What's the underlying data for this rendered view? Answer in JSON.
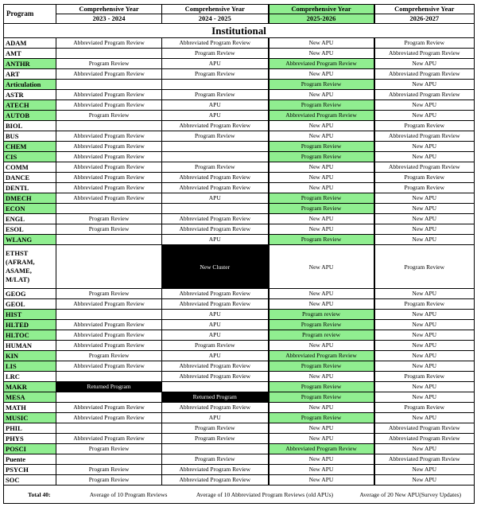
{
  "header": {
    "program_label": "Program",
    "columns": [
      {
        "title": "Comprehensive Year",
        "year": "2023 - 2024",
        "highlight": false
      },
      {
        "title": "Comprehensive Year",
        "year": "2024 - 2025",
        "highlight": false
      },
      {
        "title": "Comprehensive Year",
        "year": "2025-2026",
        "highlight": true
      },
      {
        "title": "Comprehensive Year",
        "year": "2026-2027",
        "highlight": false
      }
    ]
  },
  "section_label": "Institutional",
  "colors": {
    "highlight_green": "#90EE90",
    "inverse_black": "#000000"
  },
  "rows": [
    {
      "program": "ADAM",
      "hl": false,
      "cells": [
        {
          "t": "Abbreviated Program Review"
        },
        {
          "t": "Abbreviated Program Review"
        },
        {
          "t": "New APU"
        },
        {
          "t": "Program Review"
        }
      ]
    },
    {
      "program": "AMT",
      "hl": false,
      "cells": [
        {
          "t": ""
        },
        {
          "t": "Program Review"
        },
        {
          "t": "New APU"
        },
        {
          "t": "Abbreviated Program Review"
        }
      ]
    },
    {
      "program": "ANTHR",
      "hl": true,
      "cells": [
        {
          "t": "Program Review"
        },
        {
          "t": "APU"
        },
        {
          "t": "Abbreviated Program Review",
          "s": "green"
        },
        {
          "t": "New APU"
        }
      ]
    },
    {
      "program": "ART",
      "hl": false,
      "cells": [
        {
          "t": "Abbreviated Program Review"
        },
        {
          "t": "Program Review"
        },
        {
          "t": "New APU"
        },
        {
          "t": "Abbreviated Program Review"
        }
      ]
    },
    {
      "program": "Articulation",
      "hl": true,
      "cells": [
        {
          "t": ""
        },
        {
          "t": ""
        },
        {
          "t": "Program Review",
          "s": "green"
        },
        {
          "t": "New APU"
        }
      ]
    },
    {
      "program": "ASTR",
      "hl": false,
      "cells": [
        {
          "t": "Abbreviated Program Review"
        },
        {
          "t": "Program Review"
        },
        {
          "t": "New APU"
        },
        {
          "t": "Abbreviated Program Review"
        }
      ]
    },
    {
      "program": "ATECH",
      "hl": true,
      "cells": [
        {
          "t": "Abbreviated Program Review"
        },
        {
          "t": "APU"
        },
        {
          "t": "Program Review",
          "s": "green"
        },
        {
          "t": "New APU"
        }
      ]
    },
    {
      "program": "AUTOB",
      "hl": true,
      "cells": [
        {
          "t": "Program Review"
        },
        {
          "t": "APU"
        },
        {
          "t": "Abbreviated Program Review",
          "s": "green"
        },
        {
          "t": "New APU"
        }
      ]
    },
    {
      "program": "BIOL",
      "hl": false,
      "cells": [
        {
          "t": ""
        },
        {
          "t": "Abbreviated Program Review"
        },
        {
          "t": "New APU"
        },
        {
          "t": "Program Review"
        }
      ]
    },
    {
      "program": "BUS",
      "hl": false,
      "cells": [
        {
          "t": "Abbreviated Program Review"
        },
        {
          "t": "Program Review"
        },
        {
          "t": "New APU"
        },
        {
          "t": "Abbreviated Program Review"
        }
      ]
    },
    {
      "program": "CHEM",
      "hl": true,
      "cells": [
        {
          "t": "Abbreviated Program Review"
        },
        {
          "t": ""
        },
        {
          "t": "Program Review",
          "s": "green"
        },
        {
          "t": "New APU"
        }
      ]
    },
    {
      "program": "CIS",
      "hl": true,
      "cells": [
        {
          "t": "Abbreviated Program Review"
        },
        {
          "t": ""
        },
        {
          "t": "Program Review",
          "s": "green"
        },
        {
          "t": "New APU"
        }
      ]
    },
    {
      "program": "COMM",
      "hl": false,
      "cells": [
        {
          "t": "Abbreviated Program Review"
        },
        {
          "t": "Program Review"
        },
        {
          "t": "New APU"
        },
        {
          "t": "Abbreviated Program Review"
        }
      ]
    },
    {
      "program": "DANCE",
      "hl": false,
      "cells": [
        {
          "t": "Abbreviated Program Review"
        },
        {
          "t": "Abbreviated Program Review"
        },
        {
          "t": "New APU"
        },
        {
          "t": "Program Review"
        }
      ]
    },
    {
      "program": "DENTL",
      "hl": false,
      "cells": [
        {
          "t": "Abbreviated Program Review"
        },
        {
          "t": "Abbreviated Program Review"
        },
        {
          "t": "New APU"
        },
        {
          "t": "Program Review"
        }
      ]
    },
    {
      "program": "DMECH",
      "hl": true,
      "cells": [
        {
          "t": "Abbreviated Program Review"
        },
        {
          "t": "APU"
        },
        {
          "t": "Program Review",
          "s": "green"
        },
        {
          "t": "New APU"
        }
      ]
    },
    {
      "program": "ECON",
      "hl": true,
      "cells": [
        {
          "t": ""
        },
        {
          "t": ""
        },
        {
          "t": "Program Review",
          "s": "green"
        },
        {
          "t": "New APU"
        }
      ]
    },
    {
      "program": "ENGL",
      "hl": false,
      "cells": [
        {
          "t": "Program Review"
        },
        {
          "t": "Abbreviated Program Review"
        },
        {
          "t": "New APU"
        },
        {
          "t": "New APU"
        }
      ]
    },
    {
      "program": "ESOL",
      "hl": false,
      "cells": [
        {
          "t": "Program Review"
        },
        {
          "t": "Abbreviated Program Review"
        },
        {
          "t": "New APU"
        },
        {
          "t": "New APU"
        }
      ]
    },
    {
      "program": "WLANG",
      "hl": true,
      "cells": [
        {
          "t": ""
        },
        {
          "t": "APU"
        },
        {
          "t": "Program Review",
          "s": "green"
        },
        {
          "t": "New APU"
        }
      ]
    },
    {
      "program": "ETHST (AFRAM, ASAME, M/LAT)",
      "hl": false,
      "tall": true,
      "cells": [
        {
          "t": ""
        },
        {
          "t": "New Cluster",
          "s": "black"
        },
        {
          "t": "New APU"
        },
        {
          "t": "Program Review"
        }
      ]
    },
    {
      "program": "GEOG",
      "hl": false,
      "cells": [
        {
          "t": "Program Review"
        },
        {
          "t": "Abbreviated Program Review"
        },
        {
          "t": "New APU"
        },
        {
          "t": "New APU"
        }
      ]
    },
    {
      "program": "GEOL",
      "hl": false,
      "cells": [
        {
          "t": "Abbreviated Program Review"
        },
        {
          "t": "Abbreviated Program Review"
        },
        {
          "t": "New APU"
        },
        {
          "t": "Program Review"
        }
      ]
    },
    {
      "program": "HIST",
      "hl": true,
      "cells": [
        {
          "t": ""
        },
        {
          "t": "APU"
        },
        {
          "t": "Program review",
          "s": "green"
        },
        {
          "t": "New APU"
        }
      ]
    },
    {
      "program": "HLTED",
      "hl": true,
      "cells": [
        {
          "t": "Abbreviated Program Review"
        },
        {
          "t": "APU"
        },
        {
          "t": "Program Review",
          "s": "green"
        },
        {
          "t": "New APU"
        }
      ]
    },
    {
      "program": "HLTOC",
      "hl": true,
      "cells": [
        {
          "t": "Abbreviated Program Review"
        },
        {
          "t": "APU"
        },
        {
          "t": "Program review",
          "s": "green"
        },
        {
          "t": "New APU"
        }
      ]
    },
    {
      "program": "HUMAN",
      "hl": false,
      "cells": [
        {
          "t": "Abbreviated Program Review"
        },
        {
          "t": "Program Review"
        },
        {
          "t": "New APU"
        },
        {
          "t": "New APU"
        }
      ]
    },
    {
      "program": "KIN",
      "hl": true,
      "cells": [
        {
          "t": "Program Review"
        },
        {
          "t": "APU"
        },
        {
          "t": "Abbreviated Program Review",
          "s": "green"
        },
        {
          "t": "New APU"
        }
      ]
    },
    {
      "program": "LIS",
      "hl": true,
      "cells": [
        {
          "t": "Abbreviated Program Review"
        },
        {
          "t": "Abbreviated Program Review"
        },
        {
          "t": "Program Review",
          "s": "green"
        },
        {
          "t": "New APU"
        }
      ]
    },
    {
      "program": "LRC",
      "hl": false,
      "cells": [
        {
          "t": ""
        },
        {
          "t": "Abbreviated Program Review"
        },
        {
          "t": "New APU"
        },
        {
          "t": "Program Review"
        }
      ]
    },
    {
      "program": "MAKR",
      "hl": true,
      "cells": [
        {
          "t": "Returned Program",
          "s": "black"
        },
        {
          "t": ""
        },
        {
          "t": "Program Review",
          "s": "green"
        },
        {
          "t": "New APU"
        }
      ]
    },
    {
      "program": "MESA",
      "hl": true,
      "cells": [
        {
          "t": ""
        },
        {
          "t": "Returned Program",
          "s": "black"
        },
        {
          "t": "Program Review",
          "s": "green"
        },
        {
          "t": "New APU"
        }
      ]
    },
    {
      "program": "MATH",
      "hl": false,
      "cells": [
        {
          "t": "Abbreviated Program Review"
        },
        {
          "t": "Abbreviated Program Review"
        },
        {
          "t": "New APU"
        },
        {
          "t": "Program Review"
        }
      ]
    },
    {
      "program": "MUSIC",
      "hl": true,
      "cells": [
        {
          "t": "Abbreviated Program Review"
        },
        {
          "t": "APU"
        },
        {
          "t": "Program Review",
          "s": "green"
        },
        {
          "t": "New APU"
        }
      ]
    },
    {
      "program": "PHIL",
      "hl": false,
      "cells": [
        {
          "t": ""
        },
        {
          "t": "Program Review"
        },
        {
          "t": "New APU"
        },
        {
          "t": "Abbreviated Program Review"
        }
      ]
    },
    {
      "program": "PHYS",
      "hl": false,
      "cells": [
        {
          "t": "Abbreviated Program Review"
        },
        {
          "t": "Program Review"
        },
        {
          "t": "New APU"
        },
        {
          "t": "Abbreviated Program Review"
        }
      ]
    },
    {
      "program": "POSCI",
      "hl": true,
      "cells": [
        {
          "t": "Program Review"
        },
        {
          "t": ""
        },
        {
          "t": "Abbreviated Program Review",
          "s": "green"
        },
        {
          "t": "New APU"
        }
      ]
    },
    {
      "program": "Puente",
      "hl": false,
      "cells": [
        {
          "t": ""
        },
        {
          "t": "Program Review"
        },
        {
          "t": "New APU"
        },
        {
          "t": "Abbreviated Program Review"
        }
      ]
    },
    {
      "program": "PSYCH",
      "hl": false,
      "cells": [
        {
          "t": "Program Review"
        },
        {
          "t": "Abbreviated Program Review"
        },
        {
          "t": "New APU"
        },
        {
          "t": "New APU"
        }
      ]
    },
    {
      "program": "SOC",
      "hl": false,
      "cells": [
        {
          "t": "Program Review"
        },
        {
          "t": "Abbreviated Program Review"
        },
        {
          "t": "New APU"
        },
        {
          "t": "New APU"
        }
      ]
    }
  ],
  "footer": {
    "total_label": "Total 40:",
    "notes": [
      "Average of 10 Program Reviews",
      "Average of 10 Abbreviated Program Reviews (old APUs)",
      "Average of 20 New APU(Survey Updates)"
    ]
  }
}
